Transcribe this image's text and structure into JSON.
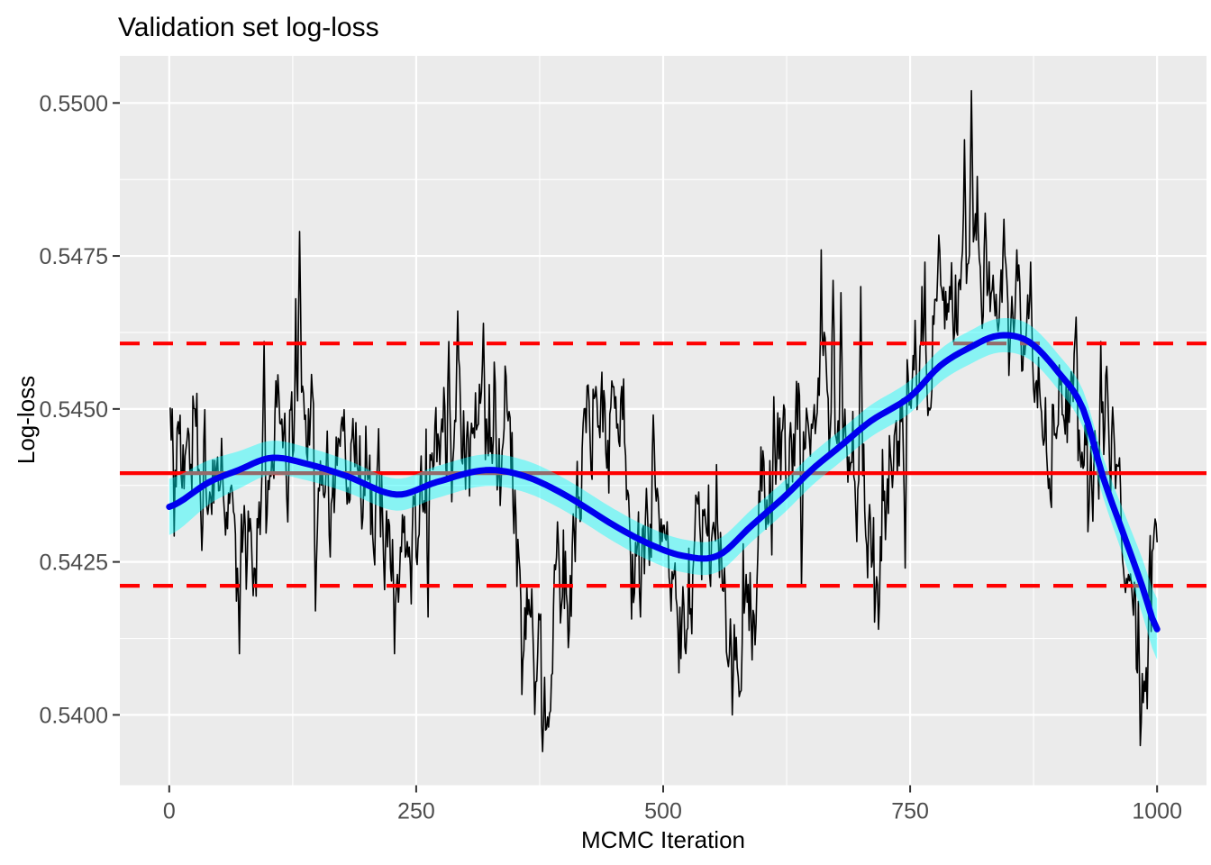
{
  "chart_data": {
    "type": "line",
    "title": "Validation set log-loss",
    "xlabel": "MCMC Iteration",
    "ylabel": "Log-loss",
    "x_tick_values": [
      0,
      250,
      500,
      750,
      1000
    ],
    "x_tick_labels": [
      "0",
      "250",
      "500",
      "750",
      "1000"
    ],
    "y_tick_values": [
      0.54,
      0.5425,
      0.545,
      0.5475,
      0.55
    ],
    "y_tick_labels": [
      "0.5400",
      "0.5425",
      "0.5450",
      "0.5475",
      "0.5500"
    ],
    "x_domain": [
      -50,
      1050
    ],
    "y_domain": [
      0.53885,
      0.55077
    ],
    "grid": {
      "major": true,
      "minor": true
    },
    "n_iterations": 1000,
    "legend": "none",
    "reference_lines": [
      {
        "name": "mean",
        "value": 0.54395,
        "style": "solid",
        "color": "#FF0000"
      },
      {
        "name": "upper-bound",
        "value": 0.54607,
        "style": "dashed",
        "color": "#FF0000"
      },
      {
        "name": "lower-bound",
        "value": 0.54211,
        "style": "dashed",
        "color": "#FF0000"
      }
    ],
    "trace": {
      "description": "noisy MCMC validation log-loss per iteration, black step-like line",
      "trend_points": [
        [
          0,
          0.5437
        ],
        [
          30,
          0.5439
        ],
        [
          60,
          0.5437
        ],
        [
          80,
          0.5431
        ],
        [
          100,
          0.5446
        ],
        [
          130,
          0.5452
        ],
        [
          155,
          0.5438
        ],
        [
          180,
          0.5437
        ],
        [
          205,
          0.5434
        ],
        [
          228,
          0.5429
        ],
        [
          250,
          0.5436
        ],
        [
          275,
          0.5443
        ],
        [
          297,
          0.5448
        ],
        [
          320,
          0.5444
        ],
        [
          340,
          0.5441
        ],
        [
          360,
          0.5425
        ],
        [
          382,
          0.5407
        ],
        [
          395,
          0.542
        ],
        [
          410,
          0.5434
        ],
        [
          425,
          0.544
        ],
        [
          448,
          0.5442
        ],
        [
          470,
          0.5428
        ],
        [
          495,
          0.5433
        ],
        [
          520,
          0.5424
        ],
        [
          540,
          0.543
        ],
        [
          558,
          0.5424
        ],
        [
          572,
          0.5414
        ],
        [
          588,
          0.5424
        ],
        [
          605,
          0.5437
        ],
        [
          625,
          0.5446
        ],
        [
          650,
          0.5452
        ],
        [
          675,
          0.545
        ],
        [
          695,
          0.5444
        ],
        [
          715,
          0.5429
        ],
        [
          735,
          0.5441
        ],
        [
          755,
          0.5452
        ],
        [
          775,
          0.5461
        ],
        [
          795,
          0.5465
        ],
        [
          815,
          0.5481
        ],
        [
          835,
          0.5469
        ],
        [
          855,
          0.5467
        ],
        [
          875,
          0.5461
        ],
        [
          890,
          0.5448
        ],
        [
          905,
          0.5452
        ],
        [
          920,
          0.5452
        ],
        [
          935,
          0.5446
        ],
        [
          950,
          0.5448
        ],
        [
          962,
          0.5439
        ],
        [
          975,
          0.5424
        ],
        [
          985,
          0.5408
        ],
        [
          993,
          0.5413
        ],
        [
          1000,
          0.5428
        ]
      ],
      "spikes": [
        [
          3,
          0.545
        ],
        [
          71,
          0.541
        ],
        [
          96,
          0.5461
        ],
        [
          128,
          0.5468
        ],
        [
          132,
          0.5479
        ],
        [
          148,
          0.5417
        ],
        [
          228,
          0.541
        ],
        [
          262,
          0.5416
        ],
        [
          283,
          0.5461
        ],
        [
          292,
          0.5466
        ],
        [
          318,
          0.5464
        ],
        [
          340,
          0.5457
        ],
        [
          352,
          0.5421
        ],
        [
          378,
          0.5394
        ],
        [
          384,
          0.5398
        ],
        [
          404,
          0.5411
        ],
        [
          420,
          0.545
        ],
        [
          438,
          0.5456
        ],
        [
          452,
          0.5452
        ],
        [
          477,
          0.5416
        ],
        [
          490,
          0.5449
        ],
        [
          523,
          0.541
        ],
        [
          548,
          0.5421
        ],
        [
          570,
          0.54
        ],
        [
          590,
          0.5409
        ],
        [
          612,
          0.5452
        ],
        [
          640,
          0.5421
        ],
        [
          660,
          0.5476
        ],
        [
          672,
          0.5471
        ],
        [
          680,
          0.5469
        ],
        [
          700,
          0.547
        ],
        [
          718,
          0.5414
        ],
        [
          745,
          0.5424
        ],
        [
          765,
          0.5474
        ],
        [
          790,
          0.547
        ],
        [
          805,
          0.5494
        ],
        [
          812,
          0.5502
        ],
        [
          818,
          0.5488
        ],
        [
          826,
          0.5482
        ],
        [
          845,
          0.5481
        ],
        [
          858,
          0.5476
        ],
        [
          872,
          0.5474
        ],
        [
          890,
          0.5437
        ],
        [
          918,
          0.5465
        ],
        [
          943,
          0.5461
        ],
        [
          958,
          0.5437
        ],
        [
          968,
          0.542
        ],
        [
          983,
          0.5395
        ],
        [
          990,
          0.5401
        ],
        [
          998,
          0.5432
        ]
      ],
      "noise": {
        "phi1": 0.55,
        "sd1": 0.00048,
        "phi2": 0.94,
        "sd2": 8e-05,
        "seed": 7
      },
      "value_range": [
        0.5393,
        0.5503
      ]
    },
    "smooth": {
      "description": "loess smooth of the trace, thick blue line",
      "points": [
        [
          0,
          0.5434
        ],
        [
          40,
          0.5438
        ],
        [
          70,
          0.544
        ],
        [
          103,
          0.5442
        ],
        [
          140,
          0.5441
        ],
        [
          180,
          0.5439
        ],
        [
          230,
          0.5436
        ],
        [
          270,
          0.5438
        ],
        [
          320,
          0.544
        ],
        [
          360,
          0.5439
        ],
        [
          400,
          0.5436
        ],
        [
          450,
          0.5431
        ],
        [
          485,
          0.5428
        ],
        [
          520,
          0.5426
        ],
        [
          555,
          0.5426
        ],
        [
          590,
          0.5431
        ],
        [
          625,
          0.5436
        ],
        [
          650,
          0.544
        ],
        [
          680,
          0.5444
        ],
        [
          710,
          0.5448
        ],
        [
          750,
          0.5452
        ],
        [
          780,
          0.5457
        ],
        [
          810,
          0.546
        ],
        [
          840,
          0.5462
        ],
        [
          870,
          0.5461
        ],
        [
          900,
          0.5456
        ],
        [
          925,
          0.545
        ],
        [
          945,
          0.5439
        ],
        [
          965,
          0.543
        ],
        [
          985,
          0.5421
        ],
        [
          1000,
          0.5414
        ]
      ]
    },
    "ribbon": {
      "description": "confidence band around smooth, translucent cyan",
      "halfwidth_points": [
        [
          0,
          0.00046
        ],
        [
          50,
          0.00034
        ],
        [
          100,
          0.00028
        ],
        [
          300,
          0.00026
        ],
        [
          500,
          0.00027
        ],
        [
          700,
          0.00026
        ],
        [
          850,
          0.00028
        ],
        [
          920,
          0.0003
        ],
        [
          960,
          0.00036
        ],
        [
          1000,
          0.0005
        ]
      ]
    },
    "colors": {
      "trace": "#000000",
      "smooth": "#0000EE",
      "ribbon": "#00FFFF",
      "ribbon_opacity": 0.42,
      "reference": "#FF0000",
      "panel_background": "#EBEBEB",
      "gridline": "#FFFFFF",
      "axis_text": "#4D4D4D",
      "tick_mark": "#333333",
      "title_color": "#000000"
    }
  }
}
